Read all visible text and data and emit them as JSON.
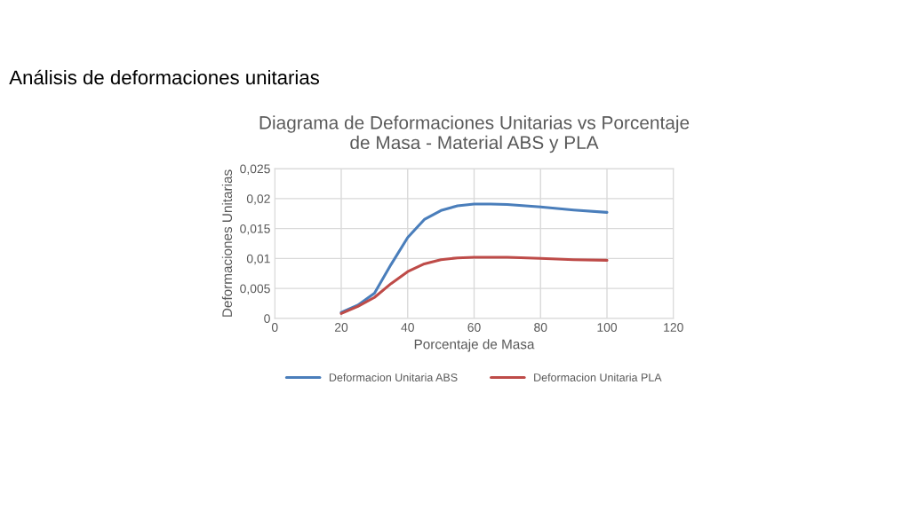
{
  "chart_data": {
    "type": "line",
    "title": "Diagrama de Deformaciones Unitarias vs Porcentaje\nde Masa - Material ABS y PLA",
    "xlabel": "Porcentaje de Masa",
    "ylabel": "Deformaciones Unitarias",
    "annotations": [
      "Análisis de deformaciones unitarias"
    ],
    "xlim": [
      0,
      120
    ],
    "xticks": [
      0,
      20,
      40,
      60,
      80,
      100,
      120
    ],
    "ylim": [
      0,
      0.025
    ],
    "yticks": [
      {
        "value": 0,
        "label": "0"
      },
      {
        "value": 0.005,
        "label": "0,005"
      },
      {
        "value": 0.01,
        "label": "0,01"
      },
      {
        "value": 0.015,
        "label": "0,015"
      },
      {
        "value": 0.02,
        "label": "0,02"
      },
      {
        "value": 0.025,
        "label": "0,025"
      }
    ],
    "grid": true,
    "legend": "bottom",
    "marker": "none",
    "line_style": "solid",
    "series": [
      {
        "name": "Deformacion Unitaria ABS",
        "color": "#4a7ebb",
        "x": [
          20,
          25,
          30,
          35,
          40,
          45,
          50,
          55,
          60,
          65,
          70,
          80,
          90,
          100
        ],
        "values": [
          0.001,
          0.0022,
          0.0042,
          0.009,
          0.0135,
          0.0165,
          0.018,
          0.0188,
          0.0191,
          0.0191,
          0.019,
          0.0186,
          0.0181,
          0.0177
        ]
      },
      {
        "name": "Deformacion Unitaria PLA",
        "color": "#be4b48",
        "x": [
          20,
          25,
          30,
          35,
          40,
          45,
          50,
          55,
          60,
          70,
          80,
          90,
          100
        ],
        "values": [
          0.0008,
          0.002,
          0.0035,
          0.0058,
          0.0078,
          0.0091,
          0.0098,
          0.0101,
          0.0102,
          0.0102,
          0.01,
          0.0098,
          0.0097
        ]
      }
    ]
  }
}
